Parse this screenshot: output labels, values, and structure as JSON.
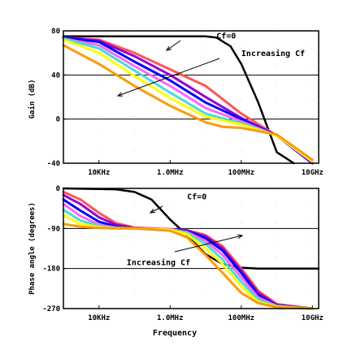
{
  "chart_data": [
    {
      "type": "line",
      "xscale": "log",
      "xlim": [
        1000,
        15000000000
      ],
      "ylim": [
        -40,
        80
      ],
      "yticks": [
        "80",
        "40",
        "0",
        "-40"
      ],
      "xticks": [
        "10KHz",
        "1.0MHz",
        "100MHz",
        "10GHz"
      ],
      "ylabel": "Gain (dB)",
      "xlabel": "",
      "grid": "dotted",
      "series": [
        {
          "name": "Cf=0",
          "color": "#000000",
          "x": [
            1000,
            10000000,
            20000000,
            50000000,
            100000000,
            300000000,
            1000000000,
            3000000000
          ],
          "y": [
            75,
            75,
            74,
            66,
            50,
            15,
            -30,
            -45
          ]
        },
        {
          "color": "#ff5555",
          "x": [
            1000,
            10000,
            100000,
            1000000,
            10000000,
            100000000,
            1000000000,
            10000000000
          ],
          "y": [
            74,
            72,
            60,
            45,
            30,
            5,
            -15,
            -40
          ]
        },
        {
          "color": "#9900cc",
          "x": [
            1000,
            10000,
            100000,
            1000000,
            10000000,
            100000000,
            1000000000,
            10000000000
          ],
          "y": [
            74,
            71,
            57,
            40,
            20,
            1,
            -15,
            -40
          ]
        },
        {
          "color": "#0000ff",
          "x": [
            1000,
            10000,
            100000,
            1000000,
            10000000,
            100000000,
            1000000000,
            10000000000
          ],
          "y": [
            74,
            70,
            52,
            35,
            15,
            0,
            -15,
            -40
          ]
        },
        {
          "color": "#ff66ff",
          "x": [
            1000,
            10000,
            100000,
            1000000,
            10000000,
            100000000,
            1000000000,
            10000000000
          ],
          "y": [
            73,
            67,
            48,
            30,
            10,
            -2,
            -15,
            -39
          ]
        },
        {
          "color": "#44dddd",
          "x": [
            1000,
            10000,
            100000,
            1000000,
            10000000,
            100000000,
            1000000000,
            10000000000
          ],
          "y": [
            73,
            64,
            44,
            24,
            5,
            -4,
            -15,
            -38
          ]
        },
        {
          "color": "#ffff00",
          "x": [
            1000,
            10000,
            100000,
            1000000,
            10000000,
            100000000,
            1000000000,
            10000000000
          ],
          "y": [
            72,
            60,
            39,
            19,
            2,
            -5,
            -15,
            -38
          ]
        },
        {
          "color": "#ff9900",
          "x": [
            1000,
            10000,
            100000,
            1000000,
            10000000,
            30000000,
            100000000,
            1000000000,
            10000000000
          ],
          "y": [
            67,
            50,
            30,
            12,
            -3,
            -7,
            -8,
            -14,
            -37
          ]
        }
      ],
      "annotations": [
        {
          "text": "Cf=0",
          "x": 20000000,
          "y": 73
        },
        {
          "text": "Increasing Cf",
          "x": 100000000,
          "y": 57
        }
      ]
    },
    {
      "type": "line",
      "xscale": "log",
      "xlim": [
        1000,
        15000000000
      ],
      "ylim": [
        -270,
        0
      ],
      "yticks": [
        "0",
        "-90",
        "-180",
        "-270"
      ],
      "xticks": [
        "10KHz",
        "1.0MHz",
        "100MHz",
        "10GHz"
      ],
      "ylabel": "Phase angle (degrees)",
      "xlabel": "Frequency",
      "grid": "dotted",
      "series": [
        {
          "name": "Cf=0",
          "color": "#000000",
          "x": [
            1000,
            30000,
            100000,
            300000,
            1000000,
            3000000,
            10000000,
            30000000,
            100000000,
            300000000,
            1000000000,
            15000000000
          ],
          "y": [
            0,
            -2,
            -8,
            -25,
            -70,
            -105,
            -148,
            -170,
            -178,
            -180,
            -180,
            -180
          ]
        },
        {
          "color": "#ff5555",
          "x": [
            1000,
            3000,
            10000,
            30000,
            100000,
            300000,
            1000000,
            3000000,
            10000000,
            30000000,
            100000000,
            300000000,
            1000000000,
            10000000000
          ],
          "y": [
            -8,
            -25,
            -55,
            -78,
            -88,
            -90,
            -92,
            -94,
            -105,
            -130,
            -180,
            -230,
            -260,
            -270
          ]
        },
        {
          "color": "#9900cc",
          "x": [
            1000,
            3000,
            10000,
            30000,
            100000,
            1000000,
            3000000,
            10000000,
            30000000,
            100000000,
            300000000,
            1000000000,
            10000000000
          ],
          "y": [
            -15,
            -35,
            -65,
            -82,
            -89,
            -92,
            -95,
            -108,
            -135,
            -185,
            -235,
            -262,
            -270
          ]
        },
        {
          "color": "#0000ff",
          "x": [
            1000,
            3000,
            10000,
            30000,
            100000,
            1000000,
            3000000,
            10000000,
            30000000,
            100000000,
            300000000,
            1000000000,
            10000000000
          ],
          "y": [
            -25,
            -50,
            -75,
            -86,
            -90,
            -92,
            -96,
            -112,
            -140,
            -190,
            -240,
            -263,
            -270
          ]
        },
        {
          "color": "#ff66ff",
          "x": [
            1000,
            3000,
            10000,
            30000,
            100000,
            1000000,
            3000000,
            10000000,
            30000000,
            100000000,
            300000000,
            1000000000,
            10000000000
          ],
          "y": [
            -35,
            -62,
            -82,
            -88,
            -90,
            -92,
            -98,
            -118,
            -150,
            -200,
            -245,
            -264,
            -270
          ]
        },
        {
          "color": "#44dddd",
          "x": [
            1000,
            3000,
            10000,
            30000,
            100000,
            1000000,
            3000000,
            10000000,
            30000000,
            100000000,
            300000000,
            1000000000,
            10000000000
          ],
          "y": [
            -48,
            -72,
            -85,
            -89,
            -90,
            -93,
            -100,
            -125,
            -160,
            -210,
            -250,
            -265,
            -270
          ]
        },
        {
          "color": "#ffff00",
          "x": [
            1000,
            3000,
            10000,
            30000,
            100000,
            1000000,
            3000000,
            10000000,
            30000000,
            100000000,
            300000000,
            1000000000,
            10000000000
          ],
          "y": [
            -60,
            -80,
            -87,
            -90,
            -90,
            -93,
            -103,
            -135,
            -170,
            -220,
            -255,
            -266,
            -270
          ]
        },
        {
          "color": "#ff9900",
          "x": [
            1000,
            3000,
            10000,
            30000,
            100000,
            1000000,
            3000000,
            10000000,
            30000000,
            100000000,
            300000000,
            1000000000,
            10000000000
          ],
          "y": [
            -80,
            -86,
            -89,
            -90,
            -90,
            -95,
            -110,
            -150,
            -190,
            -235,
            -258,
            -267,
            -270
          ]
        }
      ],
      "annotations": [
        {
          "text": "Cf=0",
          "x": 3000000,
          "y": -25
        },
        {
          "text": "Increasing Cf",
          "x": 60000,
          "y": -172
        }
      ]
    }
  ]
}
